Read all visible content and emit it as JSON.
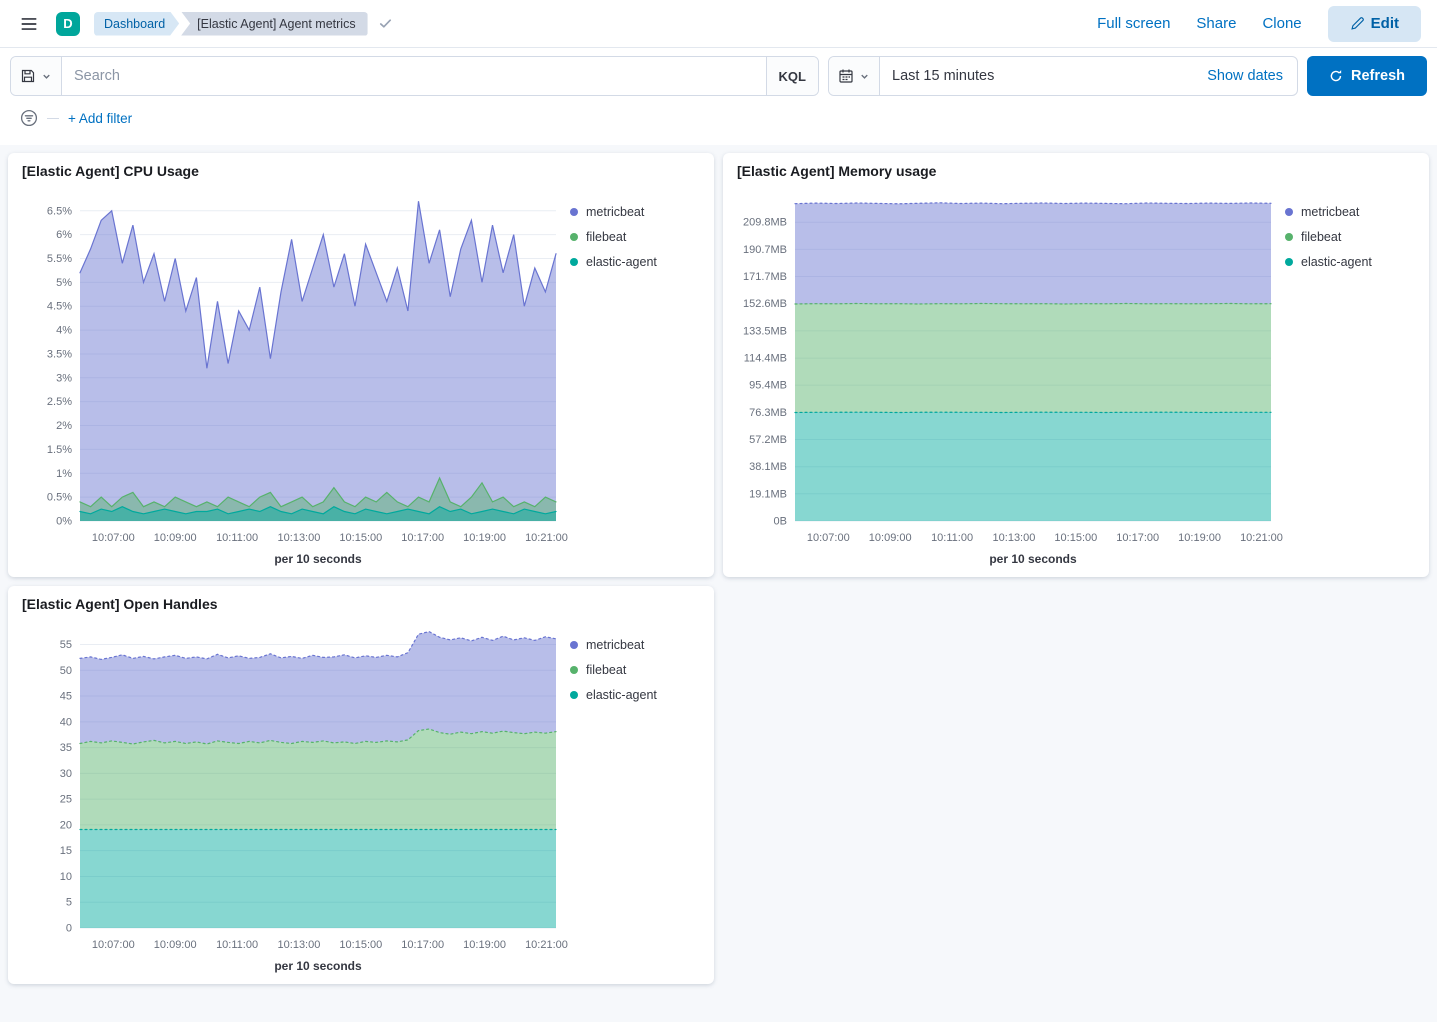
{
  "header": {
    "space_initial": "D",
    "breadcrumbs": [
      {
        "label": "Dashboard"
      },
      {
        "label": "[Elastic Agent] Agent metrics"
      }
    ],
    "actions": [
      "Full screen",
      "Share",
      "Clone"
    ],
    "edit_label": "Edit"
  },
  "query_bar": {
    "search_placeholder": "Search",
    "kql_label": "KQL",
    "time_range": "Last 15 minutes",
    "show_dates_label": "Show dates",
    "refresh_label": "Refresh",
    "add_filter_label": "+ Add filter"
  },
  "colors": {
    "primary": "#0071c2",
    "avatar": "#00a69b",
    "metricbeat": "#6974d1",
    "filebeat": "#57b26c",
    "elastic_agent": "#00a99d"
  },
  "chart_data": [
    {
      "type": "area",
      "title": "[Elastic Agent] CPU Usage",
      "mode": "overlap",
      "xlabel": "per 10 seconds",
      "x_ticks": [
        "10:07:00",
        "10:09:00",
        "10:11:00",
        "10:13:00",
        "10:15:00",
        "10:17:00",
        "10:19:00",
        "10:21:00"
      ],
      "y_tick_values": [
        0,
        0.5,
        1,
        1.5,
        2,
        2.5,
        3,
        3.5,
        4,
        4.5,
        5,
        5.5,
        6,
        6.5
      ],
      "y_tick_labels": [
        "0%",
        "0.5%",
        "1%",
        "1.5%",
        "2%",
        "2.5%",
        "3%",
        "3.5%",
        "4%",
        "4.5%",
        "5%",
        "5.5%",
        "6%",
        "6.5%"
      ],
      "ymax": 6.83,
      "legend_position": "right",
      "series": [
        {
          "name": "metricbeat",
          "color": "#6974d1",
          "values": [
            5.2,
            5.7,
            6.3,
            6.5,
            5.4,
            6.2,
            5.0,
            5.6,
            4.6,
            5.5,
            4.4,
            5.1,
            3.2,
            4.6,
            3.3,
            4.4,
            4.0,
            4.9,
            3.4,
            4.8,
            5.9,
            4.6,
            5.3,
            6.0,
            4.9,
            5.6,
            4.5,
            5.8,
            5.2,
            4.6,
            5.3,
            4.4,
            6.7,
            5.4,
            6.1,
            4.7,
            5.7,
            6.3,
            5.0,
            6.2,
            5.2,
            6.0,
            4.5,
            5.3,
            4.8,
            5.6
          ]
        },
        {
          "name": "filebeat",
          "color": "#57b26c",
          "values": [
            0.4,
            0.3,
            0.5,
            0.3,
            0.5,
            0.6,
            0.3,
            0.4,
            0.3,
            0.5,
            0.4,
            0.3,
            0.4,
            0.3,
            0.5,
            0.4,
            0.3,
            0.5,
            0.6,
            0.3,
            0.4,
            0.5,
            0.3,
            0.4,
            0.7,
            0.4,
            0.3,
            0.5,
            0.4,
            0.6,
            0.4,
            0.3,
            0.5,
            0.4,
            0.9,
            0.4,
            0.3,
            0.5,
            0.8,
            0.4,
            0.5,
            0.3,
            0.4,
            0.3,
            0.5,
            0.4
          ]
        },
        {
          "name": "elastic-agent",
          "color": "#00a99d",
          "values": [
            0.2,
            0.15,
            0.25,
            0.2,
            0.3,
            0.2,
            0.15,
            0.2,
            0.25,
            0.2,
            0.15,
            0.2,
            0.2,
            0.25,
            0.15,
            0.2,
            0.25,
            0.2,
            0.3,
            0.2,
            0.15,
            0.25,
            0.2,
            0.15,
            0.3,
            0.2,
            0.15,
            0.25,
            0.2,
            0.15,
            0.2,
            0.25,
            0.2,
            0.15,
            0.3,
            0.2,
            0.25,
            0.15,
            0.2,
            0.25,
            0.2,
            0.15,
            0.25,
            0.2,
            0.15,
            0.2
          ]
        }
      ]
    },
    {
      "type": "area",
      "title": "[Elastic Agent] Memory usage",
      "mode": "banded",
      "dash": "2 3",
      "xlabel": "per 10 seconds",
      "x_ticks": [
        "10:07:00",
        "10:09:00",
        "10:11:00",
        "10:13:00",
        "10:15:00",
        "10:17:00",
        "10:19:00",
        "10:21:00"
      ],
      "y_tick_values": [
        0,
        19.1,
        38.1,
        57.2,
        76.3,
        95.4,
        114.4,
        133.5,
        152.6,
        171.7,
        190.7,
        209.8
      ],
      "y_tick_labels": [
        "0B",
        "19.1MB",
        "38.1MB",
        "57.2MB",
        "76.3MB",
        "95.4MB",
        "114.4MB",
        "133.5MB",
        "152.6MB",
        "171.7MB",
        "190.7MB",
        "209.8MB"
      ],
      "ymax": 228.9,
      "legend_position": "right",
      "series": [
        {
          "name": "metricbeat",
          "color": "#6974d1",
          "values": [
            222.8,
            223.2,
            222.9,
            223.3,
            223.0,
            222.7,
            223.1,
            223.4,
            222.9,
            223.2,
            222.8,
            223.1,
            223.3,
            222.9,
            223.2,
            223.0,
            222.8,
            223.3,
            223.1,
            222.9,
            223.2,
            223.0,
            223.3,
            223.1
          ]
        },
        {
          "name": "filebeat",
          "color": "#57b26c",
          "values": [
            152.4,
            152.6,
            152.5,
            152.7,
            152.5,
            152.6,
            152.4,
            152.6,
            152.5,
            152.7,
            152.6,
            152.5,
            152.6,
            152.4,
            152.6,
            152.5,
            152.7,
            152.5,
            152.6,
            152.5,
            152.6,
            152.7,
            152.5,
            152.6
          ]
        },
        {
          "name": "elastic-agent",
          "color": "#00a99d",
          "values": [
            76.2,
            76.3,
            76.3,
            76.4,
            76.3,
            76.2,
            76.3,
            76.4,
            76.3,
            76.3,
            76.2,
            76.3,
            76.4,
            76.3,
            76.3,
            76.2,
            76.3,
            76.3,
            76.4,
            76.3,
            76.2,
            76.3,
            76.3,
            76.3
          ]
        }
      ]
    },
    {
      "type": "area",
      "title": "[Elastic Agent] Open Handles",
      "mode": "banded",
      "dash": "2 3",
      "xlabel": "per 10 seconds",
      "x_ticks": [
        "10:07:00",
        "10:09:00",
        "10:11:00",
        "10:13:00",
        "10:15:00",
        "10:17:00",
        "10:19:00",
        "10:21:00"
      ],
      "y_tick_values": [
        0,
        5,
        10,
        15,
        20,
        25,
        30,
        35,
        40,
        45,
        50,
        55
      ],
      "y_tick_labels": [
        "0",
        "5",
        "10",
        "15",
        "20",
        "25",
        "30",
        "35",
        "40",
        "45",
        "50",
        "55"
      ],
      "ymax": 58.2,
      "legend_position": "right",
      "series": [
        {
          "name": "metricbeat",
          "color": "#6974d1",
          "values": [
            52.3,
            52.6,
            52.1,
            52.5,
            53.0,
            52.3,
            52.7,
            52.2,
            52.6,
            52.9,
            52.3,
            52.6,
            52.2,
            53.1,
            52.4,
            52.8,
            52.3,
            52.5,
            53.2,
            52.4,
            52.7,
            52.3,
            52.9,
            52.5,
            52.6,
            53.0,
            52.4,
            52.8,
            52.5,
            52.9,
            52.6,
            53.4,
            57.0,
            57.5,
            56.4,
            55.9,
            56.3,
            55.7,
            56.4,
            55.8,
            56.6,
            55.9,
            56.3,
            55.8,
            56.5,
            56.1
          ]
        },
        {
          "name": "filebeat",
          "color": "#57b26c",
          "values": [
            35.8,
            36.2,
            35.9,
            36.3,
            36.0,
            35.7,
            36.1,
            36.4,
            35.9,
            36.2,
            35.8,
            36.1,
            35.7,
            36.3,
            36.0,
            35.8,
            36.2,
            35.9,
            36.4,
            36.0,
            35.8,
            36.2,
            36.0,
            36.3,
            35.9,
            36.1,
            35.8,
            36.2,
            36.0,
            36.3,
            36.1,
            36.5,
            38.3,
            38.6,
            37.9,
            37.6,
            38.0,
            37.7,
            38.1,
            37.8,
            38.2,
            37.9,
            37.7,
            38.0,
            37.8,
            38.1
          ]
        },
        {
          "name": "elastic-agent",
          "color": "#00a99d",
          "values": [
            19.1,
            19.1,
            19.1,
            19.1,
            19.1,
            19.1,
            19.1,
            19.1,
            19.1,
            19.1,
            19.1,
            19.1,
            19.1,
            19.1,
            19.1,
            19.1,
            19.1,
            19.1,
            19.1,
            19.1,
            19.1,
            19.1,
            19.1,
            19.1
          ]
        }
      ]
    }
  ]
}
